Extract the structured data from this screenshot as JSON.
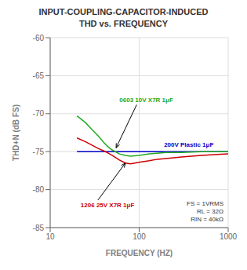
{
  "chart_data": {
    "type": "line",
    "title": "INPUT-COUPLING-CAPACITOR-INDUCED",
    "subtitle": "THD vs. FREQUENCY",
    "x_label": "FREQUENCY (HZ)",
    "y_label": "THD+N (dB FS)",
    "log": "x",
    "xlim": [
      10,
      1000
    ],
    "xticks": [
      10,
      100,
      1000
    ],
    "ylim": [
      -85,
      -60
    ],
    "yticks": [
      -85,
      -80,
      -75,
      -70,
      -65,
      -60
    ],
    "grid": true,
    "series": [
      {
        "color": "#0000cc",
        "x": [
          20,
          40,
          60,
          100,
          200,
          500,
          1000
        ],
        "values": [
          -75.0,
          -75.0,
          -75.0,
          -75.0,
          -75.0,
          -75.0,
          -75.0
        ]
      },
      {
        "color": "#22aa22",
        "x": [
          20,
          25,
          30,
          35,
          40,
          45,
          50,
          60,
          70,
          80,
          100,
          130,
          160,
          200,
          300,
          500,
          700,
          1000
        ],
        "values": [
          -70.3,
          -71.2,
          -72.2,
          -73.0,
          -73.8,
          -74.4,
          -74.8,
          -75.3,
          -75.5,
          -75.6,
          -75.5,
          -75.3,
          -75.2,
          -75.1,
          -75.1,
          -75.0,
          -75.0,
          -75.0
        ]
      },
      {
        "color": "#cc0000",
        "x": [
          20,
          25,
          30,
          35,
          40,
          45,
          50,
          60,
          70,
          80,
          100,
          130,
          160,
          200,
          300,
          500,
          700,
          1000
        ],
        "values": [
          -73.2,
          -73.7,
          -74.2,
          -74.6,
          -74.9,
          -75.2,
          -75.5,
          -76.1,
          -76.5,
          -76.6,
          -76.4,
          -76.2,
          -76.0,
          -75.9,
          -75.7,
          -75.5,
          -75.4,
          -75.3
        ]
      }
    ],
    "annotations": [
      {
        "text": "0603 10V X7R 1μF",
        "color": "#22aa22",
        "x": 60,
        "y": -68.2,
        "arrow_x": 55,
        "arrow_y": -74.5
      },
      {
        "text": "200V Plastic 1μF",
        "color": "#0000cc",
        "x": 190,
        "y": -74.1
      },
      {
        "text": "1206 25V X7R 1μF",
        "color": "#cc0000",
        "x": 22,
        "y": -82.0,
        "arrow_x": 70,
        "arrow_y": -76.5
      },
      {
        "text": "FS = 1VRMS\nRL = 32Ω\nRIN = 40kΩ"
      }
    ]
  }
}
